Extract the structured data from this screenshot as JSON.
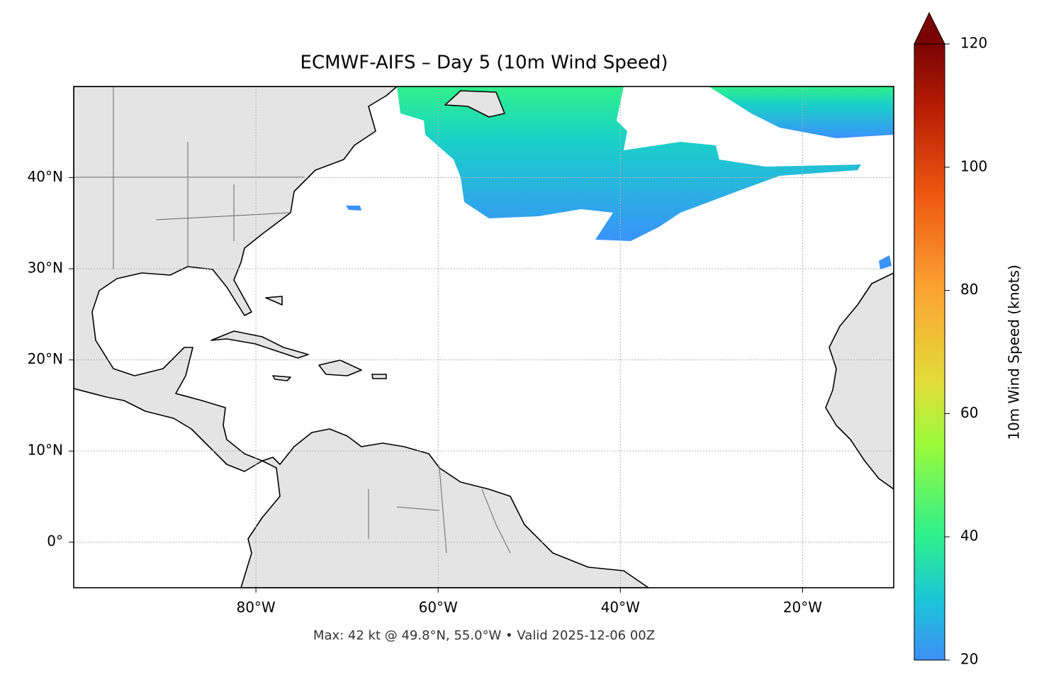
{
  "chart_data": {
    "type": "map",
    "title": "ECMWF-AIFS – Day 5 (10m Wind Speed)",
    "annotation": "Max: 42 kt @ 49.8°N, 55.0°W • Valid 2025-12-06 00Z",
    "xlim": [
      -100,
      -10
    ],
    "ylim": [
      -5,
      50
    ],
    "xticks": [
      {
        "value": -80,
        "label": "80°W"
      },
      {
        "value": -60,
        "label": "60°W"
      },
      {
        "value": -40,
        "label": "40°W"
      },
      {
        "value": -20,
        "label": "20°W"
      }
    ],
    "yticks": [
      {
        "value": 0,
        "label": "0°"
      },
      {
        "value": 10,
        "label": "10°N"
      },
      {
        "value": 20,
        "label": "20°N"
      },
      {
        "value": 30,
        "label": "30°N"
      },
      {
        "value": 40,
        "label": "40°N"
      }
    ],
    "grid": true,
    "colorbar": {
      "label": "10m Wind Speed (knots)",
      "lim": [
        20,
        120
      ],
      "ticks": [
        20,
        40,
        60,
        80,
        100,
        120
      ]
    }
  }
}
